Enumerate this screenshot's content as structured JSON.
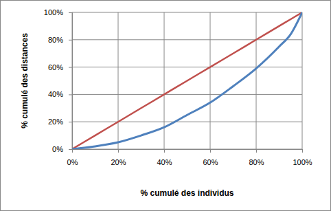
{
  "chart_data": {
    "type": "line",
    "x_label": "% cumulé des individus",
    "y_label": "% cumulé des distances",
    "x": [
      0,
      10,
      20,
      30,
      40,
      50,
      60,
      70,
      80,
      90,
      95,
      100
    ],
    "series": [
      {
        "color": "#c0504d",
        "values": [
          0,
          10,
          20,
          30,
          40,
          50,
          60,
          70,
          80,
          90,
          95,
          100
        ]
      },
      {
        "color": "#4f81bd",
        "values": [
          0,
          2,
          5,
          10,
          16,
          25,
          34,
          46,
          59,
          75,
          84,
          100
        ]
      }
    ],
    "xlim": [
      0,
      100
    ],
    "xticks": [
      {
        "value": 0,
        "label": "0%"
      },
      {
        "value": 20,
        "label": "20%"
      },
      {
        "value": 40,
        "label": "40%"
      },
      {
        "value": 60,
        "label": "60%"
      },
      {
        "value": 80,
        "label": "80%"
      },
      {
        "value": 100,
        "label": "100%"
      }
    ],
    "ylim": [
      0,
      100
    ],
    "yticks": [
      {
        "value": 0,
        "label": "0%"
      },
      {
        "value": 20,
        "label": "20%"
      },
      {
        "value": 40,
        "label": "40%"
      },
      {
        "value": 60,
        "label": "60%"
      },
      {
        "value": 80,
        "label": "80%"
      },
      {
        "value": 100,
        "label": "100%"
      }
    ],
    "grid": true
  }
}
